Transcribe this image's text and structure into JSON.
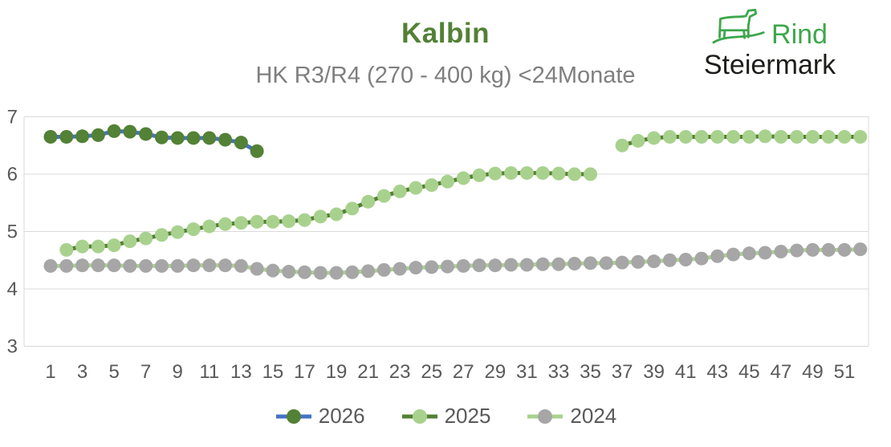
{
  "header": {
    "title": "Kalbin",
    "subtitle": "HK R3/R4 (270 - 400 kg) <24Monate"
  },
  "logo": {
    "line1": "Rind",
    "line2": "Steiermark",
    "green": "#3fa64c",
    "black": "#1d1d1b"
  },
  "colors": {
    "title_green": "#538135",
    "subtitle_gray": "#7f7f7f",
    "axis_label_gray": "#595959",
    "gridline_gray": "#d9d9d9",
    "blue_2026_line": "#4472c4",
    "dark_green": "#538135",
    "light_green": "#a9d18e",
    "marker_gray": "#a6a6a6"
  },
  "chart_data": {
    "type": "line",
    "title": "Kalbin",
    "subtitle": "HK R3/R4 (270 - 400 kg) <24Monate",
    "xlabel": "",
    "ylabel": "",
    "x": [
      1,
      2,
      3,
      4,
      5,
      6,
      7,
      8,
      9,
      10,
      11,
      12,
      13,
      14,
      15,
      16,
      17,
      18,
      19,
      20,
      21,
      22,
      23,
      24,
      25,
      26,
      27,
      28,
      29,
      30,
      31,
      32,
      33,
      34,
      35,
      36,
      37,
      38,
      39,
      40,
      41,
      42,
      43,
      44,
      45,
      46,
      47,
      48,
      49,
      50,
      51,
      52
    ],
    "x_ticks": [
      1,
      3,
      5,
      7,
      9,
      11,
      13,
      15,
      17,
      19,
      21,
      23,
      25,
      27,
      29,
      31,
      33,
      35,
      37,
      39,
      41,
      43,
      45,
      47,
      49,
      51
    ],
    "y_ticks": [
      7,
      6,
      5,
      4,
      3
    ],
    "ylim": [
      3,
      7
    ],
    "grid": true,
    "legend_position": "bottom",
    "series": [
      {
        "name": "2026",
        "line_color": "#4472c4",
        "marker_color": "#538135",
        "values": [
          6.65,
          6.65,
          6.66,
          6.68,
          6.75,
          6.74,
          6.7,
          6.64,
          6.63,
          6.63,
          6.63,
          6.6,
          6.55,
          6.4,
          null,
          null,
          null,
          null,
          null,
          null,
          null,
          null,
          null,
          null,
          null,
          null,
          null,
          null,
          null,
          null,
          null,
          null,
          null,
          null,
          null,
          null,
          null,
          null,
          null,
          null,
          null,
          null,
          null,
          null,
          null,
          null,
          null,
          null,
          null,
          null,
          null,
          null
        ]
      },
      {
        "name": "2025",
        "line_color": "#538135",
        "marker_color": "#a9d18e",
        "values": [
          null,
          4.68,
          4.74,
          4.74,
          4.76,
          4.83,
          4.88,
          4.94,
          4.99,
          5.04,
          5.09,
          5.13,
          5.15,
          5.17,
          5.17,
          5.18,
          5.2,
          5.26,
          5.3,
          5.4,
          5.52,
          5.62,
          5.7,
          5.76,
          5.81,
          5.87,
          5.93,
          5.98,
          6.01,
          6.02,
          6.02,
          6.02,
          6.01,
          6.0,
          6.0,
          null,
          6.5,
          6.58,
          6.63,
          6.65,
          6.65,
          6.65,
          6.65,
          6.65,
          6.65,
          6.66,
          6.65,
          6.65,
          6.65,
          6.65,
          6.65,
          6.65
        ]
      },
      {
        "name": "2024",
        "line_color": "#a9d18e",
        "marker_color": "#a6a6a6",
        "values": [
          4.4,
          4.4,
          4.41,
          4.41,
          4.41,
          4.4,
          4.4,
          4.4,
          4.4,
          4.41,
          4.41,
          4.41,
          4.4,
          4.35,
          4.32,
          4.3,
          4.29,
          4.28,
          4.28,
          4.29,
          4.31,
          4.33,
          4.35,
          4.37,
          4.38,
          4.39,
          4.4,
          4.41,
          4.41,
          4.42,
          4.42,
          4.43,
          4.43,
          4.44,
          4.45,
          4.45,
          4.46,
          4.47,
          4.48,
          4.5,
          4.51,
          4.53,
          4.57,
          4.6,
          4.62,
          4.63,
          4.65,
          4.67,
          4.68,
          4.68,
          4.68,
          4.69
        ]
      }
    ]
  }
}
